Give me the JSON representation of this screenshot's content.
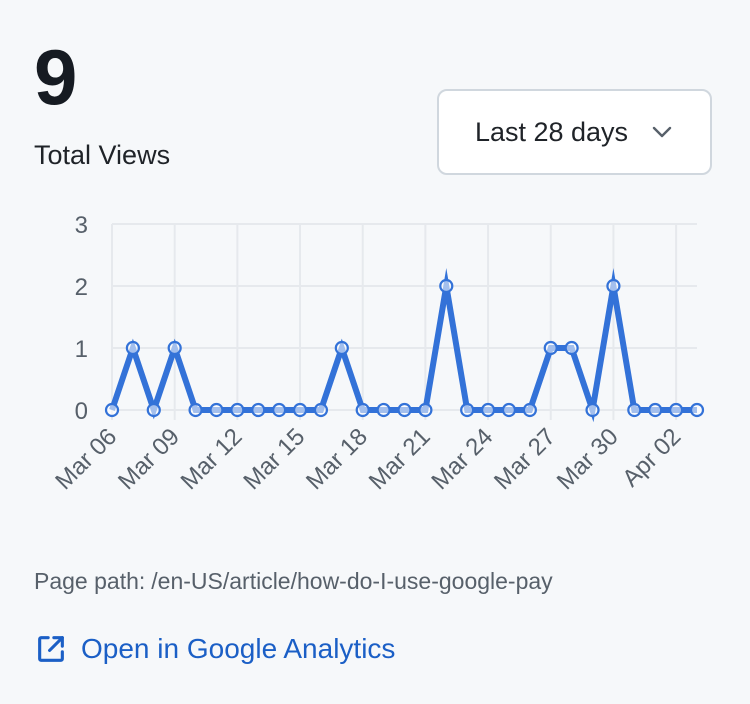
{
  "summary": {
    "total": "9",
    "total_label": "Total Views"
  },
  "date_range": {
    "selected": "Last 28 days"
  },
  "chart_data": {
    "type": "line",
    "x": [
      "Mar 06",
      "Mar 07",
      "Mar 08",
      "Mar 09",
      "Mar 10",
      "Mar 11",
      "Mar 12",
      "Mar 13",
      "Mar 14",
      "Mar 15",
      "Mar 16",
      "Mar 17",
      "Mar 18",
      "Mar 19",
      "Mar 20",
      "Mar 21",
      "Mar 22",
      "Mar 23",
      "Mar 24",
      "Mar 25",
      "Mar 26",
      "Mar 27",
      "Mar 28",
      "Mar 29",
      "Mar 30",
      "Mar 31",
      "Apr 01",
      "Apr 02",
      "Apr 03"
    ],
    "values": [
      0,
      1,
      0,
      1,
      0,
      0,
      0,
      0,
      0,
      0,
      0,
      1,
      0,
      0,
      0,
      0,
      2,
      0,
      0,
      0,
      0,
      1,
      1,
      0,
      2,
      0,
      0,
      0,
      0
    ],
    "x_tick_labels": [
      "Mar 06",
      "Mar 09",
      "Mar 12",
      "Mar 15",
      "Mar 18",
      "Mar 21",
      "Mar 24",
      "Mar 27",
      "Mar 30",
      "Apr 02"
    ],
    "y_ticks": [
      "0",
      "1",
      "2",
      "3"
    ],
    "ylim": [
      0,
      3
    ],
    "grid": true,
    "line_color": "#3372d8",
    "title": "",
    "xlabel": "",
    "ylabel": ""
  },
  "footer": {
    "page_path_label": "Page path:",
    "page_path_value": "/en-US/article/how-do-I-use-google-pay",
    "ga_link_label": "Open in Google Analytics",
    "ga_link_icon": "external-link-icon",
    "link_color": "#1b5fc6"
  }
}
